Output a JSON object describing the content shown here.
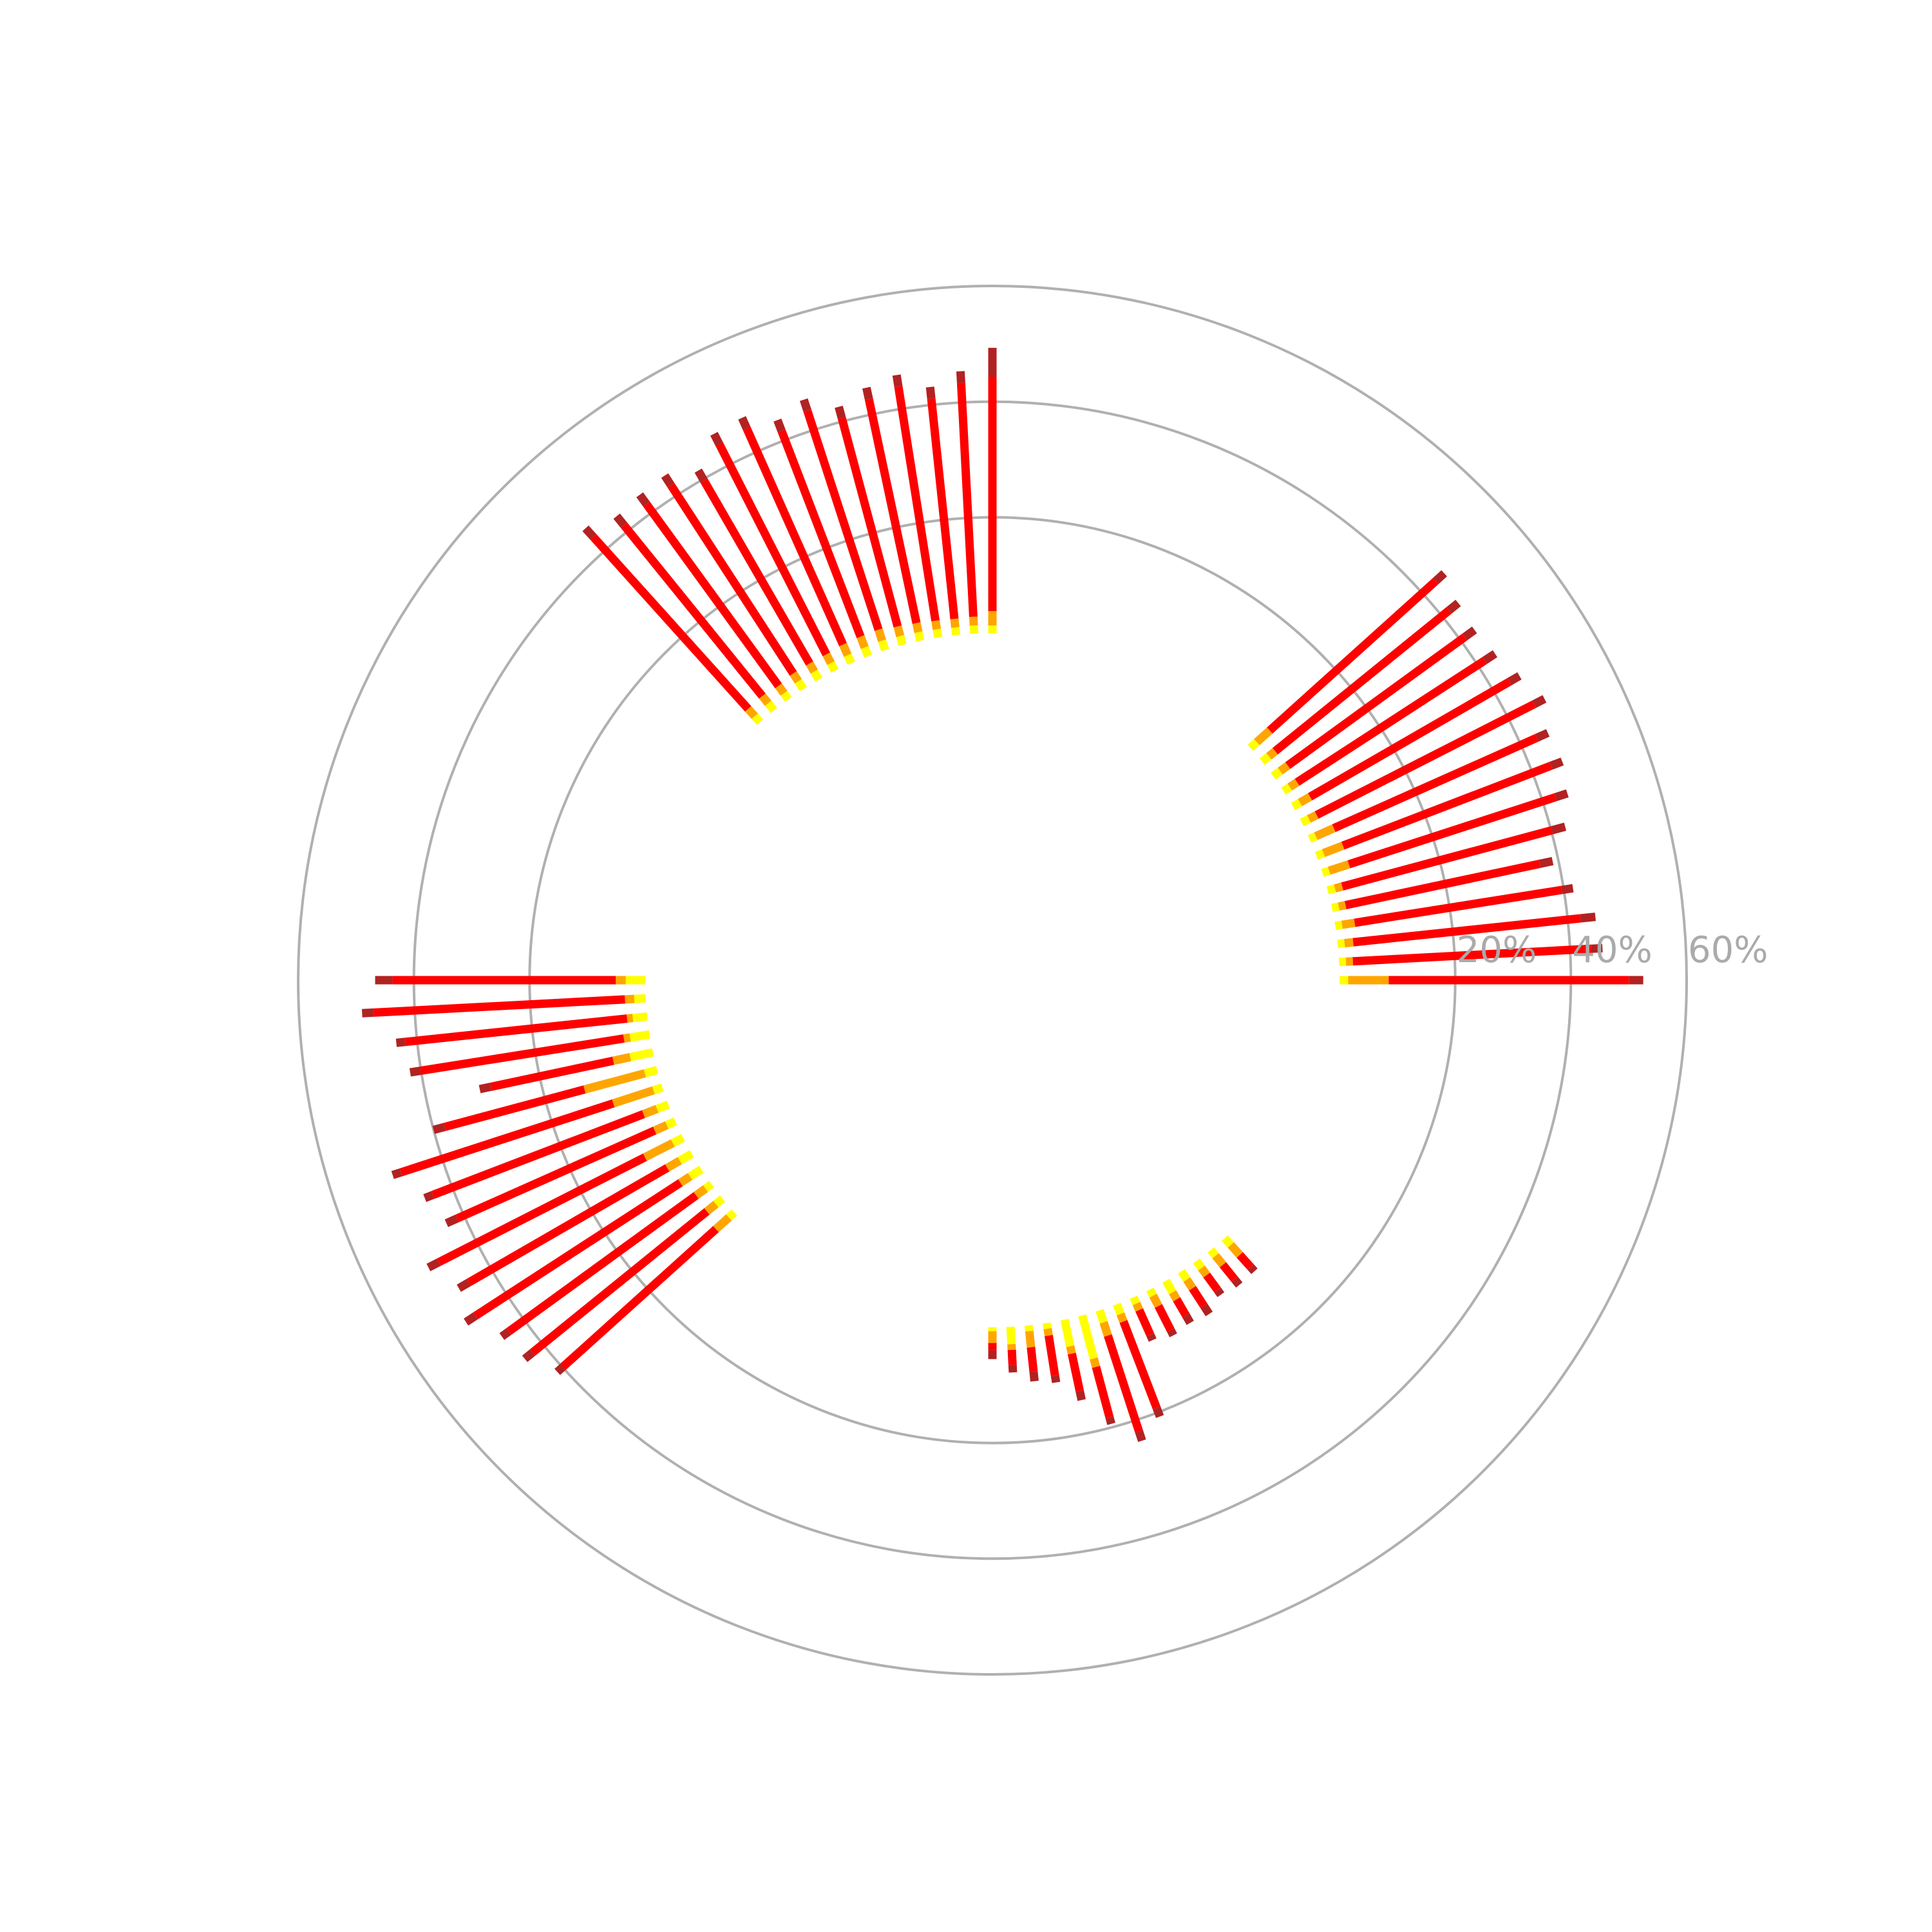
{
  "chart_data": {
    "type": "bar",
    "subtype": "polar-stacked-bar",
    "title": "",
    "radial_axis": {
      "ticks": [
        {
          "value": 20,
          "label": "20%"
        },
        {
          "value": 40,
          "label": "40%"
        },
        {
          "value": 60,
          "label": "60%"
        }
      ],
      "lim": [
        -60,
        60
      ]
    },
    "grid": true,
    "segment_colors": [
      "#ffff00",
      "#ffa500",
      "#ff0000",
      "#b22222"
    ],
    "groups": [
      {
        "angles_deg": [
          0,
          3,
          6,
          9,
          12,
          15,
          18,
          21,
          24,
          27,
          30,
          33,
          36,
          39,
          42
        ],
        "segments": [
          [
            1.5,
            1.2,
            1.2,
            1.2,
            1.2,
            1.3,
            1.2,
            1.3,
            1.2,
            1.4,
            1.4,
            1.3,
            1.5,
            1.5,
            1.5
          ],
          [
            7,
            1.2,
            1.5,
            2.2,
            1.2,
            1.3,
            3.6,
            3.6,
            3.4,
            1.5,
            2.0,
            1.5,
            1.6,
            1.4,
            3.0
          ],
          [
            41.5,
            41.2,
            39.5,
            36.2,
            34.3,
            37.5,
            37.5,
            38.5,
            38.4,
            42.2,
            39.8,
            38.7,
            37.8,
            38.7,
            38.6
          ],
          [
            2.5,
            2.0,
            2.6,
            2.0,
            2.3,
            2.4,
            2.2,
            2.1,
            2.1,
            2.0,
            2.0,
            2.1,
            2.1,
            2.0,
            2.0
          ]
        ]
      },
      {
        "angles_deg": [
          90,
          93,
          96,
          99,
          102,
          105,
          108,
          111,
          114,
          117,
          120,
          123,
          126,
          129,
          132
        ],
        "segments": [
          [
            1.3,
            1.4,
            1.3,
            1.4,
            1.5,
            1.6,
            1.7,
            1.6,
            1.5,
            1.5,
            1.6,
            1.6,
            1.3,
            1.6,
            1.4
          ],
          [
            2.5,
            1.5,
            1.5,
            1.5,
            1.6,
            1.7,
            2.0,
            2.0,
            2.0,
            1.7,
            1.6,
            1.6,
            1.6,
            1.6,
            1.7
          ],
          [
            40.5,
            40.5,
            38.3,
            41.0,
            39.6,
            37.3,
            39.8,
            38.1,
            40.9,
            40.8,
            36.5,
            38.8,
            38.8,
            38.0,
            40.0
          ],
          [
            5.0,
            2.0,
            2.0,
            2.0,
            2.0,
            2.0,
            2.0,
            2.0,
            2.0,
            2.0,
            2.0,
            2.0,
            2.0,
            2.0,
            2.0
          ]
        ]
      },
      {
        "angles_deg": [
          180,
          183,
          186,
          189,
          192,
          195,
          198,
          201,
          204,
          207,
          210,
          213,
          216,
          219,
          222
        ],
        "segments": [
          [
            3.4,
            2.0,
            2.5,
            3.4,
            4.0,
            2.2,
            1.6,
            2.1,
            1.6,
            2.0,
            2.4,
            2.3,
            1.3,
            1.5,
            1.3
          ],
          [
            1.7,
            1.6,
            1.0,
            1.1,
            3.0,
            10.8,
            7.3,
            2.5,
            2.3,
            5.4,
            2.5,
            2.0,
            2.0,
            2.0,
            3.0
          ],
          [
            38.6,
            43.5,
            38.6,
            35.6,
            21.6,
            25.0,
            38.6,
            39.0,
            37.4,
            40.0,
            39.6,
            42.2,
            40.0,
            38.8,
            35.6
          ],
          [
            3.0,
            2.0,
            1.5,
            1.8,
            2.0,
            2.0,
            1.5,
            1.5,
            2.0,
            2.0,
            2.0,
            2.0,
            1.5,
            1.7,
            1.3
          ]
        ]
      },
      {
        "angles_deg": [
          270,
          273,
          276,
          279,
          282,
          285,
          288,
          291,
          294,
          297,
          300,
          303,
          306,
          309,
          312
        ],
        "segments": [
          [
            0.7,
            3.0,
            1.0,
            1.0,
            4.7,
            7.7,
            2.2,
            1.8,
            1.2,
            1.2,
            2.3,
            1.7,
            1.5,
            1.3,
            1.6
          ],
          [
            2.0,
            1.0,
            2.8,
            1.2,
            1.3,
            1.5,
            2.4,
            1.4,
            1.2,
            2.0,
            1.4,
            1.8,
            1.5,
            2.0,
            2.3
          ],
          [
            1.3,
            2.6,
            4.2,
            7.0,
            6.6,
            9.0,
            17.4,
            16.0,
            4.7,
            4.7,
            3.2,
            3.6,
            3.2,
            3.2,
            2.8
          ],
          [
            1.5,
            1.3,
            1.7,
            1.2,
            1.6,
            1.2,
            1.7,
            1.6,
            1.0,
            1.0,
            1.5,
            1.7,
            1.0,
            1.3,
            1.0
          ]
        ]
      }
    ]
  }
}
